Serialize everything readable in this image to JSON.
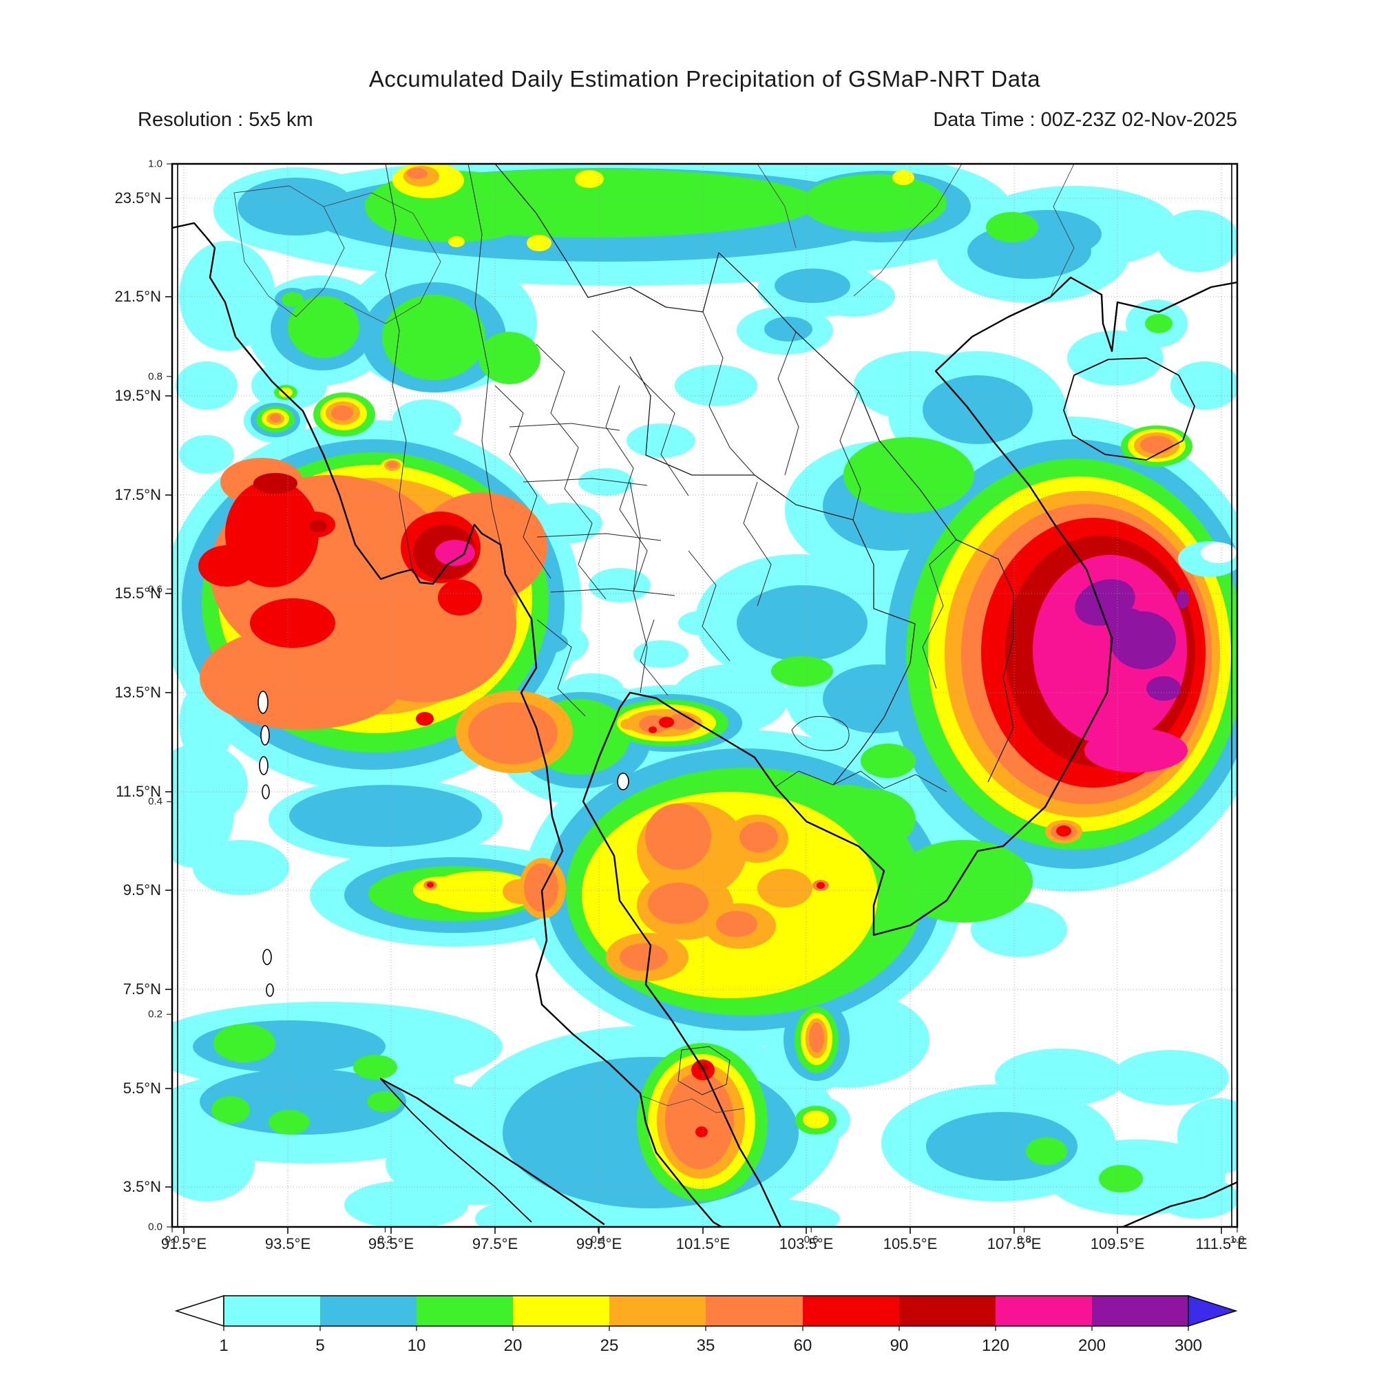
{
  "header": {
    "title": "Accumulated Daily Estimation Precipitation of GSMaP-NRT Data",
    "resolution_label": "Resolution : 5x5 km",
    "datatime_label": "Data Time : 00Z-23Z 02-Nov-2025"
  },
  "map": {
    "lat_tick_labels": [
      "23.5°N",
      "21.5°N",
      "19.5°N",
      "17.5°N",
      "15.5°N",
      "13.5°N",
      "11.5°N",
      "9.5°N",
      "7.5°N",
      "5.5°N",
      "3.5°N"
    ],
    "lon_tick_labels": [
      "91.5°E",
      "93.5°E",
      "95.5°E",
      "97.5°E",
      "99.5°E",
      "101.5°E",
      "103.5°E",
      "105.5°E",
      "107.5°E",
      "109.5°E",
      "111.5°E"
    ],
    "aux_y_tick_labels": [
      "1.0",
      "0.8",
      "0.6",
      "0.4",
      "0.2",
      "0.0"
    ],
    "aux_x_tick_labels": [
      "0.0",
      "0.2",
      "0.4",
      "0.6",
      "0.8",
      "1.0"
    ]
  },
  "colorbar": {
    "tick_labels": [
      "1",
      "5",
      "10",
      "20",
      "25",
      "35",
      "60",
      "90",
      "120",
      "200",
      "300"
    ],
    "segment_colors": [
      "#80FFFF",
      "#41BEE4",
      "#3FF12B",
      "#FFFF00",
      "#FFAB1F",
      "#FF7F40",
      "#F40000",
      "#C40000",
      "#F81395",
      "#8F14A0"
    ],
    "under_color": "#FFFFFF",
    "over_color": "#3C2BEA"
  },
  "palette": {
    "cyan": "#80FFFF",
    "blue": "#41BEE4",
    "green": "#3FF12B",
    "yellow": "#FFFF00",
    "amber": "#FFAB1F",
    "orange": "#FF7F40",
    "red": "#F40000",
    "darkred": "#C40000",
    "magenta": "#F81395",
    "purple": "#8F14A0"
  }
}
